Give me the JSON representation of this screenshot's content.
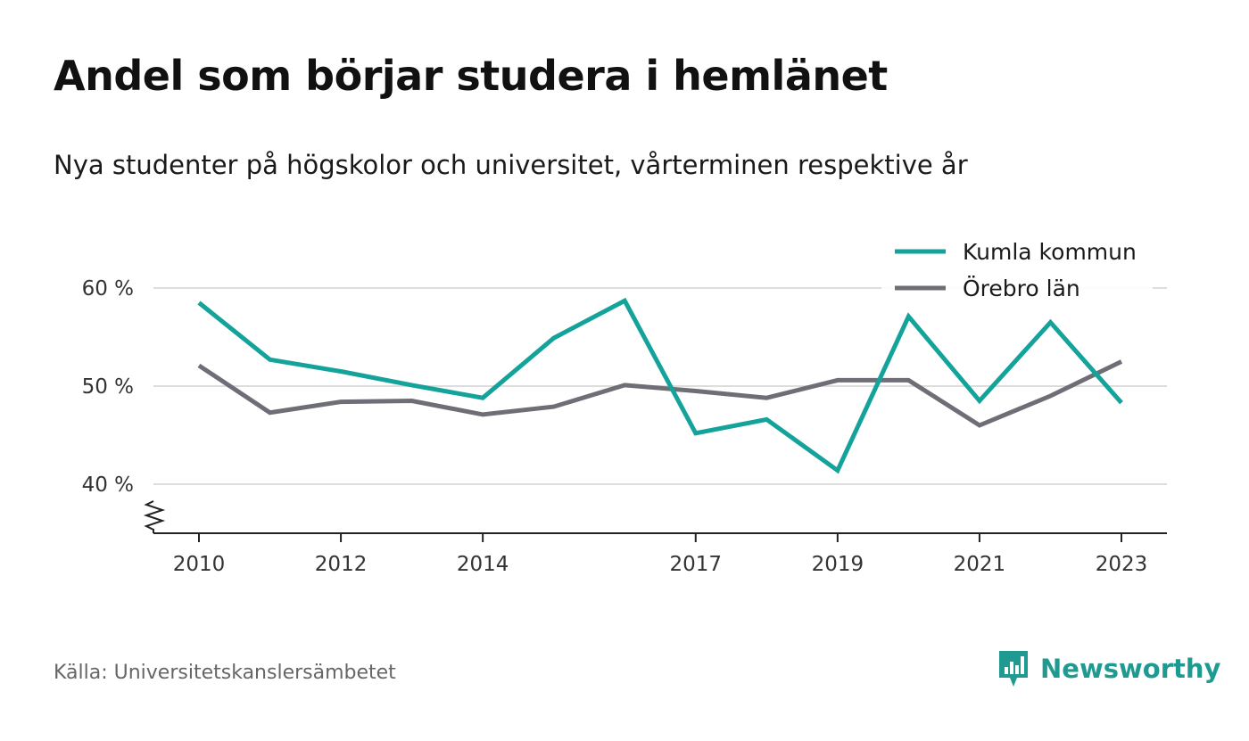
{
  "title": "Andel som börjar studera i hemlänet",
  "subtitle": "Nya studenter på högskolor och universitet, vårterminen respektive år",
  "source": "Källa: Universitetskanslersämbetet",
  "brand": {
    "name": "Newsworthy",
    "icon": "newsworthy-logo-icon",
    "color": "#1f9a91"
  },
  "chart_data": {
    "type": "line",
    "x": [
      2010,
      2011,
      2012,
      2013,
      2014,
      2015,
      2016,
      2017,
      2018,
      2019,
      2020,
      2021,
      2022,
      2023
    ],
    "x_ticks": [
      "2010",
      "2012",
      "2014",
      "2017",
      "2019",
      "2021",
      "2023"
    ],
    "y_ticks": [
      "40 %",
      "50 %",
      "60 %"
    ],
    "y_tick_values": [
      40,
      50,
      60
    ],
    "ylim": [
      35,
      60
    ],
    "y_axis_break": true,
    "grid": true,
    "legend_position": "top-right",
    "series": [
      {
        "name": "Kumla kommun",
        "color": "#14a39a",
        "values": [
          58.5,
          52.7,
          51.5,
          50.1,
          48.8,
          54.9,
          58.7,
          45.2,
          46.6,
          41.4,
          57.1,
          48.5,
          56.5,
          48.3
        ]
      },
      {
        "name": "Örebro län",
        "color": "#6f6e76",
        "values": [
          52.1,
          47.3,
          48.4,
          48.5,
          47.1,
          47.9,
          50.1,
          49.5,
          48.8,
          50.6,
          50.6,
          46.0,
          49.0,
          52.5
        ]
      }
    ]
  }
}
